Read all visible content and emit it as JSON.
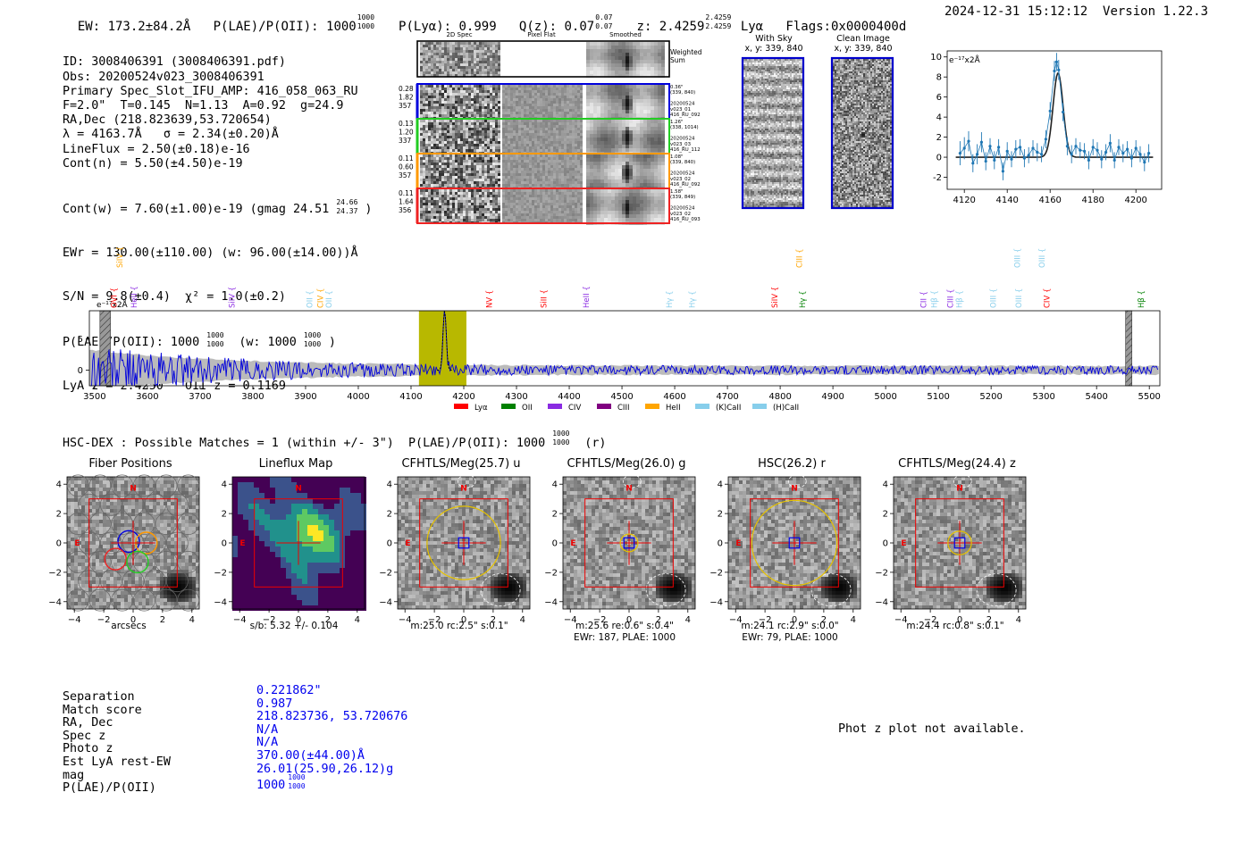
{
  "header": {
    "ew": "EW: 173.2±84.2Å",
    "plae_label": "P(LAE)/P(OII): 1000",
    "plae_hi": "1000",
    "plae_lo": "1000",
    "plya": "P(Lyα): 0.999",
    "qz_label": "Q(z): 0.07",
    "qz_hi": "0.07",
    "qz_lo": "0.07",
    "z_label": "z: 2.4259",
    "z_hi": "2.4259",
    "z_lo": "2.4259",
    "z_line": "Lyα",
    "flags": "Flags:0x0000400d",
    "timestamp": "2024-12-31 15:12:12",
    "version": "Version 1.22.3"
  },
  "info": {
    "lines": [
      "ID: 3008406391 (3008406391.pdf)",
      "Obs: 20200524v023_3008406391",
      "Primary Spec_Slot_IFU_AMP: 416_058_063_RU",
      "F=2.0\"  T=0.145  N=1.13  A=0.92  g=24.9",
      "RA,Dec (218.823639,53.720654)",
      "λ = 4163.7Å   σ = 2.34(±0.20)Å",
      "LineFlux = 2.50(±0.18)e-16",
      "Cont(n) = 5.50(±4.50)e-19"
    ],
    "cont_w": "Cont(w) = 7.60(±1.00)e-19 (gmag 24.51",
    "cont_w_hi": "24.66",
    "cont_w_lo": "24.37",
    "cont_w_end": ")",
    "ewr": "EWr = 130.00(±110.00) (w: 96.00(±14.00))Å",
    "sn": "S/N = 9.8(±0.4)  χ² = 1.0(±0.2)",
    "plae": "P(LAE)/P(OII): 1000",
    "plae_hi": "1000",
    "plae_lo": "1000",
    "plae_w": "(w: 1000",
    "plae_w_hi": "1000",
    "plae_w_lo": "1000",
    "plae_w_end": ")",
    "lya_z": "LyA z = 2.4250   OII z = 0.1169"
  },
  "cutouts": {
    "col_titles": [
      "2D Spec",
      "Pixel Flat",
      "Smoothed"
    ],
    "weighted_sum": "Weighted Sum",
    "rows": [
      {
        "left": [
          "0.28",
          "1.82",
          "357"
        ],
        "right": [
          "0.36\"",
          "(339, 840)",
          "",
          "20200524",
          "v023_01",
          "416_RU_092"
        ],
        "color": "#0000dd"
      },
      {
        "left": [
          "0.13",
          "1.20",
          "337"
        ],
        "right": [
          "1.26\"",
          "(338, 1014)",
          "",
          "20200524",
          "v023_03",
          "416_RU_112"
        ],
        "color": "#22cc22"
      },
      {
        "left": [
          "0.11",
          "0.60",
          "357"
        ],
        "right": [
          "1.08\"",
          "(339, 840)",
          "",
          "20200524",
          "v023_02",
          "416_RU_092"
        ],
        "color": "#ff9900"
      },
      {
        "left": [
          "0.11",
          "1.64",
          "356"
        ],
        "right": [
          "1.58\"",
          "(339, 849)",
          "",
          "20200524",
          "v023_02",
          "416_RU_093"
        ],
        "color": "#ee2222"
      }
    ],
    "with_sky_title": "With Sky",
    "with_sky_coords": "x, y: 339, 840",
    "clean_title": "Clean Image",
    "clean_coords": "x, y: 339, 840"
  },
  "zoom_chart": {
    "type": "line",
    "ylabel": "e⁻¹⁷x2Å",
    "xlim": [
      4112,
      4212
    ],
    "ylim": [
      -3.2,
      10.6
    ],
    "xticks": [
      4120,
      4140,
      4160,
      4180,
      4200
    ],
    "yticks": [
      -2,
      0,
      2,
      4,
      6,
      8,
      10
    ],
    "fit": {
      "center": 4163.7,
      "sigma": 2.34,
      "amp": 8.4
    },
    "points": [
      [
        4118,
        0.4,
        1.2
      ],
      [
        4120,
        0.9,
        1.1
      ],
      [
        4122,
        1.6,
        1.0
      ],
      [
        4124,
        -0.6,
        0.9
      ],
      [
        4126,
        0.3,
        1.0
      ],
      [
        4128,
        1.5,
        1.0
      ],
      [
        4130,
        -0.4,
        0.9
      ],
      [
        4132,
        1.1,
        0.8
      ],
      [
        4134,
        -0.3,
        0.9
      ],
      [
        4136,
        1.0,
        0.8
      ],
      [
        4138,
        -1.4,
        0.9
      ],
      [
        4140,
        0.6,
        0.9
      ],
      [
        4142,
        -0.2,
        0.8
      ],
      [
        4144,
        0.8,
        0.9
      ],
      [
        4146,
        1.0,
        0.8
      ],
      [
        4148,
        -0.1,
        0.9
      ],
      [
        4150,
        0.2,
        0.8
      ],
      [
        4152,
        0.9,
        0.8
      ],
      [
        4154,
        0.5,
        0.9
      ],
      [
        4156,
        0.3,
        0.8
      ],
      [
        4158,
        1.8,
        0.9
      ],
      [
        4160,
        4.6,
        0.9
      ],
      [
        4162,
        8.6,
        1.0
      ],
      [
        4163,
        9.5,
        0.9
      ],
      [
        4164,
        8.7,
        1.0
      ],
      [
        4166,
        4.5,
        0.9
      ],
      [
        4168,
        1.1,
        0.9
      ],
      [
        4170,
        0.3,
        0.9
      ],
      [
        4172,
        1.1,
        0.8
      ],
      [
        4174,
        0.7,
        0.8
      ],
      [
        4176,
        0.6,
        0.8
      ],
      [
        4178,
        -0.3,
        0.9
      ],
      [
        4180,
        1.0,
        0.8
      ],
      [
        4182,
        0.7,
        0.8
      ],
      [
        4184,
        -0.2,
        0.9
      ],
      [
        4186,
        0.5,
        0.8
      ],
      [
        4188,
        1.4,
        0.9
      ],
      [
        4190,
        -0.3,
        0.8
      ],
      [
        4192,
        1.0,
        0.8
      ],
      [
        4194,
        0.4,
        0.9
      ],
      [
        4196,
        0.8,
        0.8
      ],
      [
        4198,
        -0.1,
        0.9
      ],
      [
        4200,
        0.9,
        0.8
      ],
      [
        4202,
        0.3,
        0.8
      ],
      [
        4204,
        -0.5,
        0.9
      ],
      [
        4206,
        0.4,
        0.9
      ]
    ]
  },
  "full_spectrum": {
    "type": "line",
    "ylabel": "e⁻¹⁷x2Å",
    "xlim": [
      3490,
      5520
    ],
    "ylim": [
      -2.5,
      9.5
    ],
    "xticks": [
      3500,
      3600,
      3700,
      3800,
      3900,
      4000,
      4100,
      4200,
      4300,
      4400,
      4500,
      4600,
      4700,
      4800,
      4900,
      5000,
      5100,
      5200,
      5300,
      5400,
      5500
    ],
    "yticks": [
      0,
      5
    ],
    "highlight": [
      4115,
      4205
    ],
    "emission_peak": {
      "x": 4163.7,
      "y": 9.3
    },
    "hatched": [
      [
        3510,
        3530
      ],
      [
        5455,
        5467
      ]
    ],
    "legend": [
      {
        "label": "Lyα",
        "color": "#ff0000"
      },
      {
        "label": "OII",
        "color": "#008000"
      },
      {
        "label": "CIV",
        "color": "#8a2be2"
      },
      {
        "label": "CIII",
        "color": "#800080"
      },
      {
        "label": "HeII",
        "color": "#ffa500"
      },
      {
        "label": "(K)CaII",
        "color": "#87ceeb"
      },
      {
        "label": "(H)CaII",
        "color": "#87ceeb"
      }
    ],
    "lines_upper": [
      {
        "label": "SiIV",
        "x": 3548,
        "color": "#ffa500"
      },
      {
        "label": "CIII",
        "x": 4836,
        "color": "#ffa500"
      },
      {
        "label": "OIII",
        "x": 5250,
        "color": "#87ceeb"
      },
      {
        "label": "OIII",
        "x": 5296,
        "color": "#87ceeb"
      }
    ],
    "lines_lower": [
      {
        "label": "OVI",
        "x": 3537,
        "color": "#ff0000"
      },
      {
        "label": "HeII",
        "x": 3575,
        "color": "#8a2be2"
      },
      {
        "label": "SiIV",
        "x": 3760,
        "color": "#8a2be2"
      },
      {
        "label": "OII",
        "x": 3908,
        "color": "#87ceeb"
      },
      {
        "label": "CIV",
        "x": 3928,
        "color": "#ffa500"
      },
      {
        "label": "OII",
        "x": 3944,
        "color": "#87ceeb"
      },
      {
        "label": "NV",
        "x": 4248,
        "color": "#ff0000"
      },
      {
        "label": "SiII",
        "x": 4352,
        "color": "#ff0000"
      },
      {
        "label": "HeII",
        "x": 4432,
        "color": "#8a2be2"
      },
      {
        "label": "Hγ",
        "x": 4590,
        "color": "#87ceeb"
      },
      {
        "label": "Hγ",
        "x": 4633,
        "color": "#87ceeb"
      },
      {
        "label": "SiIV",
        "x": 4790,
        "color": "#ff0000"
      },
      {
        "label": "Hγ",
        "x": 4842,
        "color": "#008000"
      },
      {
        "label": "CII",
        "x": 5072,
        "color": "#8a2be2"
      },
      {
        "label": "Hβ",
        "x": 5092,
        "color": "#87ceeb"
      },
      {
        "label": "CIII",
        "x": 5123,
        "color": "#8a2be2"
      },
      {
        "label": "Hβ",
        "x": 5140,
        "color": "#87ceeb"
      },
      {
        "label": "OIII",
        "x": 5204,
        "color": "#87ceeb"
      },
      {
        "label": "OIII",
        "x": 5252,
        "color": "#87ceeb"
      },
      {
        "label": "CIV",
        "x": 5306,
        "color": "#ff0000"
      },
      {
        "label": "Hβ",
        "x": 5484,
        "color": "#008000"
      }
    ]
  },
  "hsc": {
    "summary": "HSC-DEX : Possible Matches = 1 (within +/- 3\")  P(LAE)/P(OII): 1000",
    "summary_hi": "1000",
    "summary_lo": "1000",
    "summary_end": "(r)",
    "axis_ticks": [
      "-4",
      "-2",
      "0",
      "2",
      "4"
    ],
    "panels": [
      {
        "title": "Fiber Positions",
        "label1": "arcsecs",
        "label2": "",
        "circle_r": 0
      },
      {
        "title": "Lineflux Map",
        "label1": "s/b: 5.32 +/- 0.104",
        "label2": "",
        "circle_r": 0
      },
      {
        "title": "CFHTLS/Meg(25.7) u",
        "label1": "m:25.0 rc:2.5\"  s:0.1\"",
        "label2": "",
        "circle_r": 2.5
      },
      {
        "title": "CFHTLS/Meg(26.0) g",
        "label1": "m:25.6  re:0.6\"  s:0.4\"",
        "label2": "EWr: 187, PLAE: 1000",
        "circle_r": 0.6
      },
      {
        "title": "HSC(26.2) r",
        "label1": "m:24.1 rc:2.9\"  s:0.0\"",
        "label2": "EWr: 79, PLAE: 1000",
        "circle_r": 2.9
      },
      {
        "title": "CFHTLS/Meg(24.4) z",
        "label1": "m:24.4 rc:0.8\"  s:0.1\"",
        "label2": "",
        "circle_r": 0.8
      }
    ],
    "compass_n": "N",
    "compass_e": "E"
  },
  "match": {
    "labels": [
      "Separation",
      "Match score",
      "RA, Dec",
      "Spec z",
      "Photo z",
      "Est LyA rest-EW",
      "mag",
      "P(LAE)/P(OII)"
    ],
    "values": [
      "0.221862\"",
      "0.987",
      "218.823736, 53.720676",
      "N/A",
      "N/A",
      "370.00(±44.00)Å",
      "26.01(25.90,26.12)g",
      "1000"
    ],
    "plae_hi": "1000",
    "plae_lo": "1000"
  },
  "photz_note": "Phot z plot not available.",
  "colors": {
    "spectrum": "#0000dd",
    "error_band": "#bbbbbb",
    "highlight": "#b8b800",
    "fit": "#222222",
    "points": "#1f77b4"
  }
}
